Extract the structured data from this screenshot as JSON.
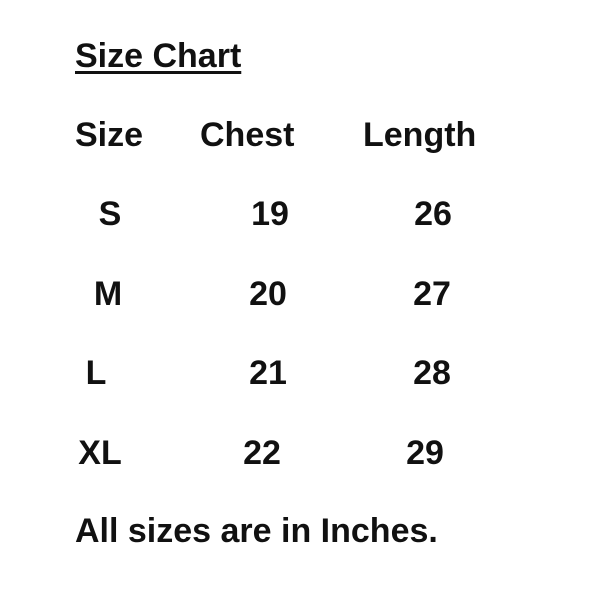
{
  "title": "Size Chart",
  "headers": [
    "Size",
    "Chest",
    "Length"
  ],
  "rows": [
    [
      "S",
      "19",
      "26"
    ],
    [
      "M",
      "20",
      "27"
    ],
    [
      "L",
      "21",
      "28"
    ],
    [
      "XL",
      "22",
      "29"
    ]
  ],
  "footer": "All sizes are in Inches."
}
